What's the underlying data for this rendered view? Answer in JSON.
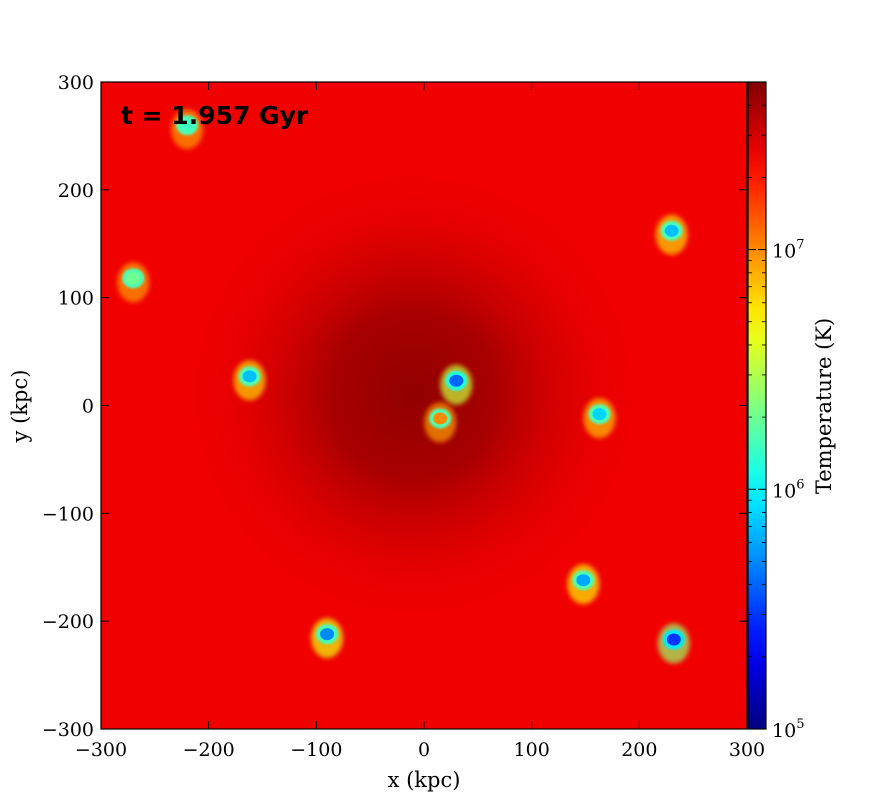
{
  "chart_data": {
    "type": "heatmap",
    "annotation": "t = 1.957 Gyr",
    "xlabel": "x  (kpc)",
    "ylabel": "y  (kpc)",
    "xlim": [
      -300,
      300
    ],
    "ylim": [
      -300,
      300
    ],
    "xticks": [
      -300,
      -200,
      -100,
      0,
      100,
      200,
      300
    ],
    "yticks": [
      -300,
      -200,
      -100,
      0,
      100,
      200,
      300
    ],
    "xtick_labels": [
      "−300",
      "−200",
      "−100",
      "0",
      "100",
      "200",
      "300"
    ],
    "ytick_labels": [
      "−300",
      "−200",
      "−100",
      "0",
      "100",
      "200",
      "300"
    ],
    "grid": false,
    "colormap": "jet",
    "colorbar": {
      "label": "Temperature  (K)",
      "scale": "log",
      "range": [
        100000,
        50000000
      ],
      "ticks": [
        {
          "value": 100000,
          "base": "10",
          "exp": "5"
        },
        {
          "value": 1000000,
          "base": "10",
          "exp": "6"
        },
        {
          "value": 10000000,
          "base": "10",
          "exp": "7"
        }
      ]
    },
    "background_temperature_K": 25000000,
    "core_temperature_K": 45000000,
    "core_center_kpc": [
      -10,
      10
    ],
    "clumps": [
      {
        "x": -220,
        "y": 260,
        "temperature_K": 1500000
      },
      {
        "x": -270,
        "y": 118,
        "temperature_K": 2000000
      },
      {
        "x": -162,
        "y": 27,
        "temperature_K": 700000
      },
      {
        "x": 30,
        "y": 23,
        "temperature_K": 400000
      },
      {
        "x": 15,
        "y": -12,
        "temperature_K": 10000000
      },
      {
        "x": 163,
        "y": -8,
        "temperature_K": 800000
      },
      {
        "x": 230,
        "y": 162,
        "temperature_K": 700000
      },
      {
        "x": 148,
        "y": -162,
        "temperature_K": 600000
      },
      {
        "x": -90,
        "y": -212,
        "temperature_K": 500000
      },
      {
        "x": 232,
        "y": -217,
        "temperature_K": 300000
      }
    ]
  }
}
